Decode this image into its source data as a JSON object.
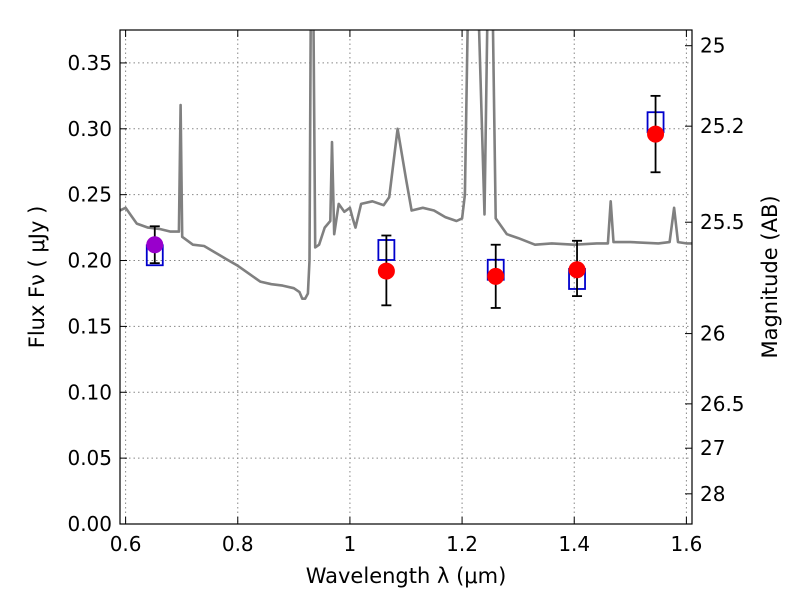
{
  "chart_data": {
    "type": "scatter",
    "title": "",
    "xlabel": "Wavelength  λ (μm)",
    "ylabel": "Flux  Fν  ( μJy )",
    "ylabel_right": "Magnitude (AB)",
    "xlim": [
      0.59,
      1.61
    ],
    "ylim": [
      0.0,
      0.375
    ],
    "grid": true,
    "x_ticks": [
      {
        "value": 0.6,
        "label": "0.6"
      },
      {
        "value": 0.8,
        "label": "0.8"
      },
      {
        "value": 1.0,
        "label": "1"
      },
      {
        "value": 1.2,
        "label": "1.2"
      },
      {
        "value": 1.4,
        "label": "1.4"
      },
      {
        "value": 1.6,
        "label": "1.6"
      }
    ],
    "y_ticks": [
      {
        "value": 0.0,
        "label": "0.00"
      },
      {
        "value": 0.05,
        "label": "0.05"
      },
      {
        "value": 0.1,
        "label": "0.10"
      },
      {
        "value": 0.15,
        "label": "0.15"
      },
      {
        "value": 0.2,
        "label": "0.20"
      },
      {
        "value": 0.25,
        "label": "0.25"
      },
      {
        "value": 0.3,
        "label": "0.30"
      },
      {
        "value": 0.35,
        "label": "0.35"
      }
    ],
    "mag_ticks": [
      {
        "mag": 25,
        "label": "25"
      },
      {
        "mag": 25.2,
        "label": "25.2"
      },
      {
        "mag": 25.5,
        "label": "25.5"
      },
      {
        "mag": 26,
        "label": "26"
      },
      {
        "mag": 26.5,
        "label": "26.5"
      },
      {
        "mag": 27,
        "label": "27"
      },
      {
        "mag": 28,
        "label": "28"
      }
    ],
    "colors": {
      "model": "#808080",
      "observed": "#ff0000",
      "observed_first": "#9900cc",
      "model_box": "#0000cc",
      "errorbar": "#000000",
      "grid": "#888888"
    },
    "model_spectrum": [
      [
        0.59,
        0.238
      ],
      [
        0.6,
        0.24
      ],
      [
        0.61,
        0.234
      ],
      [
        0.62,
        0.228
      ],
      [
        0.64,
        0.225
      ],
      [
        0.66,
        0.224
      ],
      [
        0.68,
        0.222
      ],
      [
        0.695,
        0.222
      ],
      [
        0.698,
        0.318
      ],
      [
        0.701,
        0.218
      ],
      [
        0.72,
        0.212
      ],
      [
        0.74,
        0.211
      ],
      [
        0.76,
        0.206
      ],
      [
        0.78,
        0.201
      ],
      [
        0.8,
        0.196
      ],
      [
        0.82,
        0.19
      ],
      [
        0.84,
        0.184
      ],
      [
        0.86,
        0.182
      ],
      [
        0.88,
        0.181
      ],
      [
        0.9,
        0.179
      ],
      [
        0.91,
        0.176
      ],
      [
        0.915,
        0.171
      ],
      [
        0.92,
        0.171
      ],
      [
        0.925,
        0.175
      ],
      [
        0.928,
        0.2
      ],
      [
        0.93,
        0.38
      ],
      [
        0.935,
        0.38
      ],
      [
        0.938,
        0.21
      ],
      [
        0.945,
        0.212
      ],
      [
        0.955,
        0.225
      ],
      [
        0.965,
        0.23
      ],
      [
        0.968,
        0.29
      ],
      [
        0.972,
        0.22
      ],
      [
        0.98,
        0.243
      ],
      [
        0.99,
        0.237
      ],
      [
        1.0,
        0.24
      ],
      [
        1.005,
        0.232
      ],
      [
        1.01,
        0.225
      ],
      [
        1.02,
        0.243
      ],
      [
        1.04,
        0.245
      ],
      [
        1.06,
        0.242
      ],
      [
        1.07,
        0.248
      ],
      [
        1.085,
        0.3
      ],
      [
        1.1,
        0.262
      ],
      [
        1.11,
        0.238
      ],
      [
        1.13,
        0.24
      ],
      [
        1.15,
        0.238
      ],
      [
        1.17,
        0.233
      ],
      [
        1.19,
        0.23
      ],
      [
        1.2,
        0.232
      ],
      [
        1.205,
        0.25
      ],
      [
        1.21,
        0.38
      ],
      [
        1.23,
        0.38
      ],
      [
        1.24,
        0.235
      ],
      [
        1.245,
        0.38
      ],
      [
        1.255,
        0.38
      ],
      [
        1.26,
        0.232
      ],
      [
        1.28,
        0.22
      ],
      [
        1.3,
        0.217
      ],
      [
        1.33,
        0.212
      ],
      [
        1.36,
        0.213
      ],
      [
        1.4,
        0.212
      ],
      [
        1.44,
        0.213
      ],
      [
        1.46,
        0.213
      ],
      [
        1.465,
        0.245
      ],
      [
        1.47,
        0.214
      ],
      [
        1.5,
        0.214
      ],
      [
        1.55,
        0.213
      ],
      [
        1.57,
        0.214
      ],
      [
        1.578,
        0.24
      ],
      [
        1.585,
        0.214
      ],
      [
        1.6,
        0.213
      ],
      [
        1.61,
        0.213
      ]
    ],
    "observed": [
      {
        "x": 0.652,
        "y": 0.212,
        "yerr_low": 0.014,
        "yerr_high": 0.014
      },
      {
        "x": 1.065,
        "y": 0.192,
        "yerr_low": 0.026,
        "yerr_high": 0.027
      },
      {
        "x": 1.26,
        "y": 0.188,
        "yerr_low": 0.024,
        "yerr_high": 0.024
      },
      {
        "x": 1.405,
        "y": 0.193,
        "yerr_low": 0.02,
        "yerr_high": 0.022
      },
      {
        "x": 1.545,
        "y": 0.296,
        "yerr_low": 0.029,
        "yerr_high": 0.029
      }
    ],
    "model_photometry": [
      {
        "x": 0.652,
        "y": 0.204
      },
      {
        "x": 1.065,
        "y": 0.208
      },
      {
        "x": 1.26,
        "y": 0.193
      },
      {
        "x": 1.405,
        "y": 0.186
      },
      {
        "x": 1.545,
        "y": 0.305
      }
    ]
  }
}
